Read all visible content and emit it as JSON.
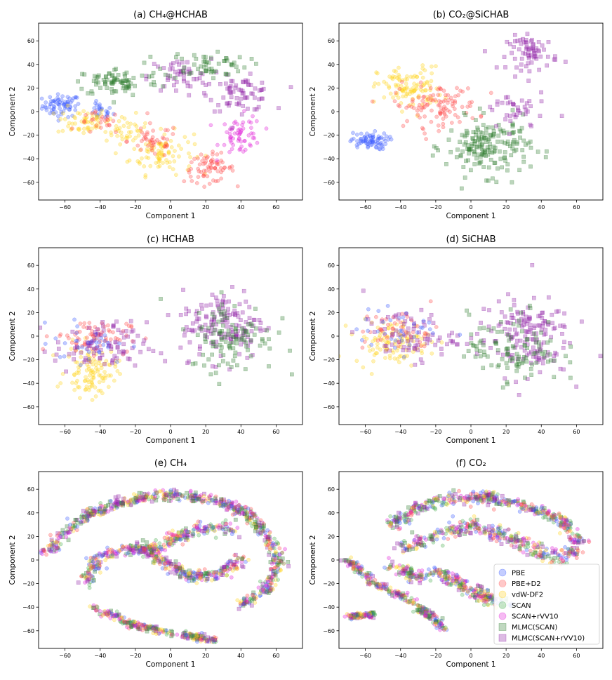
{
  "figure": {
    "common_xlabel": "Component 1",
    "common_ylabel": "Component 2"
  },
  "chart_data": [
    {
      "type": "scatter",
      "panel": "a",
      "title": "(a) CH₄@HCHAB",
      "xlabel": "Component 1",
      "ylabel": "Component 2",
      "xlim": [
        -75,
        75
      ],
      "ylim": [
        -75,
        75
      ],
      "xticks": [
        -60,
        -40,
        -20,
        0,
        20,
        40,
        60
      ],
      "yticks": [
        -60,
        -40,
        -20,
        0,
        20,
        40,
        60
      ],
      "clusters": [
        {
          "series": "PBE",
          "center": [
            -62,
            5
          ],
          "spread": [
            9,
            8
          ],
          "count": 70
        },
        {
          "series": "PBE",
          "center": [
            -40,
            0
          ],
          "spread": [
            6,
            6
          ],
          "count": 25
        },
        {
          "series": "vdW-DF2",
          "center": [
            -50,
            -8
          ],
          "spread": [
            12,
            10
          ],
          "count": 55
        },
        {
          "series": "vdW-DF2",
          "center": [
            -5,
            -35
          ],
          "spread": [
            15,
            15
          ],
          "count": 90
        },
        {
          "series": "vdW-DF2",
          "center": [
            -25,
            -15
          ],
          "spread": [
            10,
            10
          ],
          "count": 40
        },
        {
          "series": "PBE+D2",
          "center": [
            22,
            -48
          ],
          "spread": [
            12,
            10
          ],
          "count": 70
        },
        {
          "series": "PBE+D2",
          "center": [
            -10,
            -25
          ],
          "spread": [
            12,
            12
          ],
          "count": 45
        },
        {
          "series": "PBE+D2",
          "center": [
            -40,
            -10
          ],
          "spread": [
            10,
            8
          ],
          "count": 25
        },
        {
          "series": "SCAN+rVV10",
          "center": [
            40,
            -20
          ],
          "spread": [
            10,
            14
          ],
          "count": 60
        },
        {
          "series": "MLMC(SCAN+rVV10)",
          "center": [
            40,
            15
          ],
          "spread": [
            15,
            12
          ],
          "count": 70
        },
        {
          "series": "MLMC(SCAN+rVV10)",
          "center": [
            5,
            30
          ],
          "spread": [
            15,
            12
          ],
          "count": 50
        },
        {
          "series": "MLMC(SCAN)",
          "center": [
            -30,
            25
          ],
          "spread": [
            20,
            10
          ],
          "count": 80
        },
        {
          "series": "MLMC(SCAN)",
          "center": [
            20,
            40
          ],
          "spread": [
            20,
            10
          ],
          "count": 60
        }
      ]
    },
    {
      "type": "scatter",
      "panel": "b",
      "title": "(b) CO₂@SiCHAB",
      "xlabel": "Component 1",
      "ylabel": "Component 2",
      "xlim": [
        -75,
        75
      ],
      "ylim": [
        -75,
        75
      ],
      "xticks": [
        -60,
        -40,
        -20,
        0,
        20,
        40,
        60
      ],
      "yticks": [
        -60,
        -40,
        -20,
        0,
        20,
        40,
        60
      ],
      "clusters": [
        {
          "series": "PBE",
          "center": [
            -58,
            -25
          ],
          "spread": [
            9,
            6
          ],
          "count": 75
        },
        {
          "series": "vdW-DF2",
          "center": [
            -35,
            20
          ],
          "spread": [
            15,
            15
          ],
          "count": 110
        },
        {
          "series": "PBE+D2",
          "center": [
            -20,
            5
          ],
          "spread": [
            20,
            15
          ],
          "count": 110
        },
        {
          "series": "MLMC(SCAN+rVV10)",
          "center": [
            35,
            50
          ],
          "spread": [
            12,
            12
          ],
          "count": 70
        },
        {
          "series": "MLMC(SCAN)",
          "center": [
            10,
            -30
          ],
          "spread": [
            20,
            20
          ],
          "count": 180
        },
        {
          "series": "MLMC(SCAN+rVV10)",
          "center": [
            25,
            0
          ],
          "spread": [
            15,
            15
          ],
          "count": 40
        }
      ]
    },
    {
      "type": "scatter",
      "panel": "c",
      "title": "(c) HCHAB",
      "xlabel": "Component 1",
      "ylabel": "Component 2",
      "xlim": [
        -75,
        75
      ],
      "ylim": [
        -75,
        75
      ],
      "xticks": [
        -60,
        -40,
        -20,
        0,
        20,
        40,
        60
      ],
      "yticks": [
        -60,
        -40,
        -20,
        0,
        20,
        40,
        60
      ],
      "clusters": [
        {
          "series": "vdW-DF2",
          "center": [
            -45,
            -30
          ],
          "spread": [
            12,
            18
          ],
          "count": 110
        },
        {
          "series": "PBE+D2",
          "center": [
            -45,
            0
          ],
          "spread": [
            18,
            12
          ],
          "count": 70
        },
        {
          "series": "MLMC(SCAN+rVV10)",
          "center": [
            -40,
            -10
          ],
          "spread": [
            22,
            18
          ],
          "count": 90
        },
        {
          "series": "PBE",
          "center": [
            -45,
            -5
          ],
          "spread": [
            18,
            15
          ],
          "count": 35
        },
        {
          "series": "MLMC(SCAN+rVV10)",
          "center": [
            30,
            10
          ],
          "spread": [
            20,
            25
          ],
          "count": 150
        },
        {
          "series": "MLMC(SCAN)",
          "center": [
            35,
            0
          ],
          "spread": [
            20,
            25
          ],
          "count": 110
        }
      ]
    },
    {
      "type": "scatter",
      "panel": "d",
      "title": "(d) SiCHAB",
      "xlabel": "Component 1",
      "ylabel": "Component 2",
      "xlim": [
        -75,
        75
      ],
      "ylim": [
        -75,
        75
      ],
      "xticks": [
        -60,
        -40,
        -20,
        0,
        20,
        40,
        60
      ],
      "yticks": [
        -60,
        -40,
        -20,
        0,
        20,
        40,
        60
      ],
      "clusters": [
        {
          "series": "vdW-DF2",
          "center": [
            -45,
            -5
          ],
          "spread": [
            18,
            15
          ],
          "count": 110
        },
        {
          "series": "PBE+D2",
          "center": [
            -40,
            5
          ],
          "spread": [
            18,
            15
          ],
          "count": 45
        },
        {
          "series": "MLMC(SCAN+rVV10)",
          "center": [
            -35,
            0
          ],
          "spread": [
            22,
            18
          ],
          "count": 75
        },
        {
          "series": "PBE",
          "center": [
            -40,
            5
          ],
          "spread": [
            20,
            15
          ],
          "count": 35
        },
        {
          "series": "MLMC(SCAN+rVV10)",
          "center": [
            30,
            0
          ],
          "spread": [
            22,
            28
          ],
          "count": 160
        },
        {
          "series": "MLMC(SCAN)",
          "center": [
            25,
            -10
          ],
          "spread": [
            22,
            25
          ],
          "count": 110
        }
      ]
    },
    {
      "type": "scatter",
      "panel": "e",
      "title": "(e) CH₄",
      "xlabel": "Component 1",
      "ylabel": "Component 2",
      "xlim": [
        -75,
        75
      ],
      "ylim": [
        -75,
        75
      ],
      "xticks": [
        -60,
        -40,
        -20,
        0,
        20,
        40,
        60
      ],
      "yticks": [
        -60,
        -40,
        -20,
        0,
        20,
        40,
        60
      ],
      "paths": [
        {
          "points": [
            [
              -73,
              3
            ],
            [
              -60,
              22
            ],
            [
              -45,
              40
            ],
            [
              -30,
              48
            ],
            [
              -10,
              55
            ],
            [
              10,
              55
            ],
            [
              30,
              48
            ],
            [
              45,
              38
            ],
            [
              55,
              20
            ],
            [
              62,
              0
            ],
            [
              55,
              -25
            ],
            [
              40,
              -38
            ]
          ],
          "spread": 4,
          "count": 240
        },
        {
          "points": [
            [
              -45,
              -40
            ],
            [
              -20,
              -55
            ],
            [
              0,
              -62
            ],
            [
              25,
              -68
            ]
          ],
          "spread": 3,
          "count": 90
        },
        {
          "points": [
            [
              -48,
              -20
            ],
            [
              -42,
              0
            ],
            [
              -30,
              8
            ],
            [
              -15,
              10
            ],
            [
              0,
              -5
            ],
            [
              15,
              -15
            ],
            [
              30,
              -10
            ],
            [
              40,
              0
            ]
          ],
          "spread": 5,
          "count": 150
        },
        {
          "points": [
            [
              -10,
              10
            ],
            [
              5,
              20
            ],
            [
              20,
              28
            ],
            [
              35,
              25
            ]
          ],
          "spread": 6,
          "count": 60
        }
      ]
    },
    {
      "type": "scatter",
      "panel": "f",
      "title": "(f) CO₂",
      "xlabel": "Component 1",
      "ylabel": "Component 2",
      "xlim": [
        -75,
        75
      ],
      "ylim": [
        -75,
        75
      ],
      "xticks": [
        -60,
        -40,
        -20,
        0,
        20,
        40,
        60
      ],
      "yticks": [
        -60,
        -40,
        -20,
        0,
        20,
        40,
        60
      ],
      "paths": [
        {
          "points": [
            [
              -45,
              30
            ],
            [
              -30,
              45
            ],
            [
              -10,
              52
            ],
            [
              10,
              54
            ],
            [
              30,
              45
            ],
            [
              50,
              35
            ],
            [
              62,
              15
            ]
          ],
          "spread": 5,
          "count": 150
        },
        {
          "points": [
            [
              -40,
              10
            ],
            [
              -20,
              20
            ],
            [
              0,
              30
            ],
            [
              20,
              20
            ],
            [
              35,
              10
            ],
            [
              50,
              0
            ],
            [
              60,
              10
            ]
          ],
          "spread": 6,
          "count": 120
        },
        {
          "points": [
            [
              -70,
              0
            ],
            [
              -55,
              -20
            ],
            [
              -40,
              -30
            ],
            [
              -25,
              -45
            ],
            [
              -15,
              -58
            ]
          ],
          "spread": 3,
          "count": 90
        },
        {
          "points": [
            [
              -45,
              -5
            ],
            [
              -30,
              -15
            ],
            [
              -20,
              -10
            ],
            [
              -5,
              -20
            ],
            [
              5,
              -30
            ],
            [
              20,
              -38
            ]
          ],
          "spread": 5,
          "count": 100
        },
        {
          "points": [
            [
              -70,
              -48
            ],
            [
              -55,
              -46
            ]
          ],
          "spread": 2,
          "count": 40
        }
      ]
    }
  ],
  "legend": {
    "location": "lower-right of panel (f)",
    "entries": [
      {
        "label": "PBE",
        "color": "#3a5bff",
        "marker": "circle"
      },
      {
        "label": "PBE+D2",
        "color": "#ff4a4a",
        "marker": "circle"
      },
      {
        "label": "vdW-DF2",
        "color": "#ffd21a",
        "marker": "circle"
      },
      {
        "label": "SCAN",
        "color": "#4caf50",
        "marker": "circle"
      },
      {
        "label": "SCAN+rVV10",
        "color": "#e01ad6",
        "marker": "circle"
      },
      {
        "label": "MLMC(SCAN)",
        "color": "#2f7d2f",
        "marker": "square"
      },
      {
        "label": "MLMC(SCAN+rVV10)",
        "color": "#8f1fa6",
        "marker": "square"
      }
    ]
  }
}
